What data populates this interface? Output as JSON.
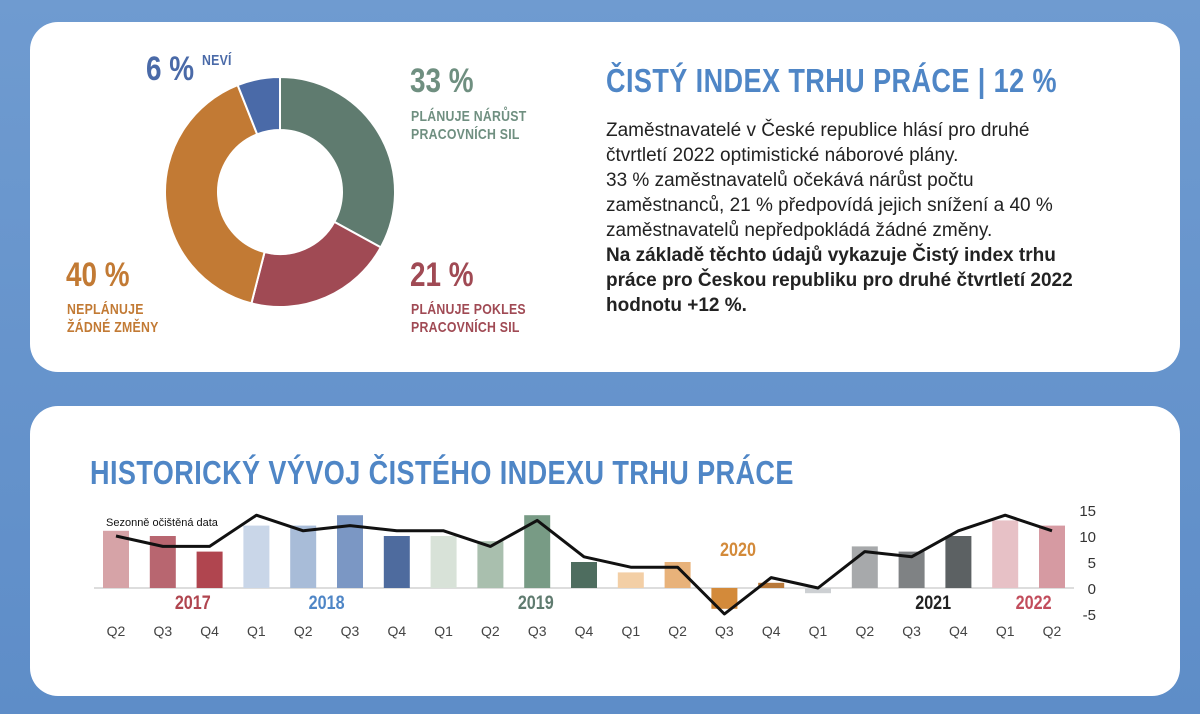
{
  "summary": {
    "title": "ČISTÝ INDEX TRHU PRÁCE | 12 %",
    "paragraph_lines": [
      "Zaměstnavatelé v České republice hlásí pro druhé",
      "čtvrtletí 2022 optimistické náborové plány.",
      "33 % zaměstnavatelů očekává nárůst počtu",
      "zaměstnanců, 21 % předpovídá jejich snížení a 40 %",
      "zaměstnavatelů nepředpokládá žádné změny."
    ],
    "bold_lines": [
      "Na základě těchto údajů vykazuje Čistý index trhu",
      "práce pro Českou republiku pro druhé čtvrtletí 2022",
      "hodnotu +12 %."
    ]
  },
  "donut": {
    "labels": {
      "increase_pct": "33 %",
      "increase_l1": "PLÁNUJE NÁRŮST",
      "increase_l2": "PRACOVNÍCH SIL",
      "decrease_pct": "21 %",
      "decrease_l1": "PLÁNUJE POKLES",
      "decrease_l2": "PRACOVNÍCH SIL",
      "nochange_pct": "40 %",
      "nochange_l1": "NEPLÁNUJE",
      "nochange_l2": "ŽÁDNÉ ZMĚNY",
      "unknown_pct": "6 %",
      "unknown_word": "NEVÍ"
    }
  },
  "history": {
    "title": "HISTORICKÝ VÝVOJ ČISTÉHO INDEXU TRHU PRÁCE",
    "note": "Sezonně očištěná data"
  },
  "chart_data": [
    {
      "type": "pie",
      "labels": [
        "PLÁNUJE NÁRŮST PRACOVNÍCH SIL",
        "PLÁNUJE POKLES PRACOVNÍCH SIL",
        "NEPLÁNUJE ŽÁDNÉ ZMĚNY",
        "NEVÍ"
      ],
      "values": [
        33,
        21,
        40,
        6
      ],
      "colors": [
        "#5f7b6f",
        "#a04a54",
        "#c27a34",
        "#4a6aa8"
      ]
    },
    {
      "type": "bar",
      "title": "HISTORICKÝ VÝVOJ ČISTÉHO INDEXU TRHU PRÁCE",
      "categories": [
        "Q2",
        "Q3",
        "Q4",
        "Q1",
        "Q2",
        "Q3",
        "Q4",
        "Q1",
        "Q2",
        "Q3",
        "Q4",
        "Q1",
        "Q2",
        "Q3",
        "Q4",
        "Q1",
        "Q2",
        "Q3",
        "Q4",
        "Q1",
        "Q2"
      ],
      "years": [
        {
          "label": "2017",
          "color": "#b0454f"
        },
        {
          "label": "2018",
          "color": "#4f86c6"
        },
        {
          "label": "2019",
          "color": "#5f7b6f"
        },
        {
          "label": "2020",
          "color": "#d38a3a"
        },
        {
          "label": "2021",
          "color": "#222222"
        },
        {
          "label": "2022",
          "color": "#c24d5c"
        }
      ],
      "bars": [
        11,
        10,
        7,
        12,
        12,
        14,
        10,
        10,
        9,
        14,
        5,
        3,
        5,
        -4,
        1,
        -1,
        8,
        7,
        10,
        13,
        12
      ],
      "bar_colors": [
        "#d6a3a7",
        "#b86670",
        "#b0454f",
        "#c9d6e8",
        "#a8bcd8",
        "#7b97c4",
        "#4e6b9e",
        "#d8e2d8",
        "#a9bfae",
        "#789b85",
        "#4e6d5f",
        "#f3cfa6",
        "#e8b27a",
        "#d38a3a",
        "#b8793a",
        "#cdd0d3",
        "#a7a9ab",
        "#7f8284",
        "#5c6163",
        "#e7c1c6",
        "#d69aa2"
      ],
      "series": [
        {
          "name": "Sezonně očištěná data",
          "values": [
            10,
            8,
            8,
            14,
            11,
            12,
            11,
            11,
            8,
            13,
            6,
            4,
            4,
            -5,
            2,
            0,
            7,
            6,
            11,
            14,
            11
          ]
        }
      ],
      "yticks": [
        15,
        10,
        5,
        0,
        -5
      ],
      "ylim": [
        -5,
        15
      ]
    }
  ]
}
